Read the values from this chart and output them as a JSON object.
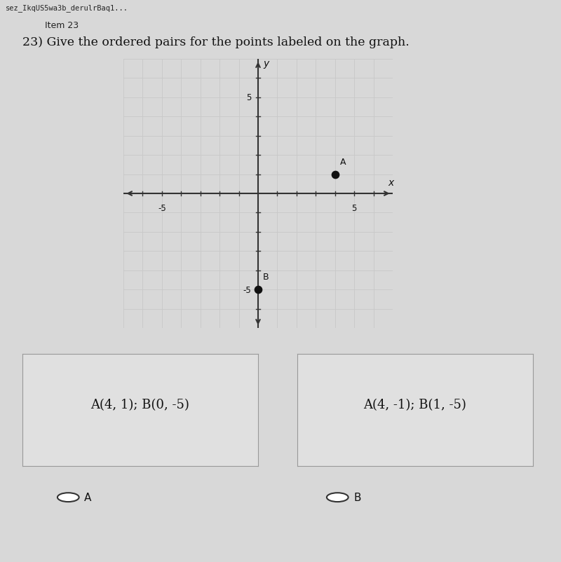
{
  "title_text": "23) Give the ordered pairs for the points labeled on the graph.",
  "header_text": "Item 23",
  "url_text": "sez_IkqUS5wa3b_derulrBaq1...",
  "point_A": [
    4,
    1
  ],
  "point_B": [
    0,
    -5
  ],
  "label_A": "A",
  "label_B": "B",
  "axis_min": -7,
  "axis_max": 7,
  "tick_label_vals": [
    -5,
    5
  ],
  "xlabel": "x",
  "ylabel": "y",
  "dot_color": "#111111",
  "dot_size": 55,
  "axis_color": "#333333",
  "grid_color": "#c8c8c8",
  "graph_bg": "#d8d8d8",
  "answer_A_text": "A(4, 1); B(0, -5)",
  "answer_B_text": "A(4, -1); B(1, -5)",
  "answer_label_A": "A",
  "answer_label_B": "B",
  "choice_box_color": "#e0e0e0",
  "choice_box_border": "#999999",
  "page_bg": "#d8d8d8",
  "font_color": "#111111"
}
